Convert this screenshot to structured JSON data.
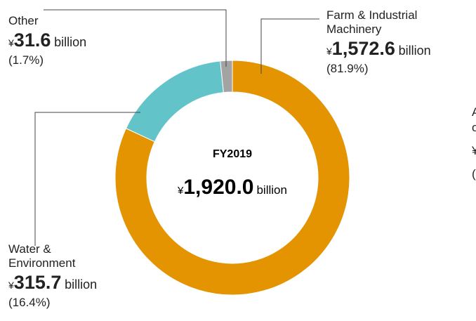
{
  "chart_data": {
    "type": "pie",
    "categories": [
      "Farm & Industrial Machinery",
      "Water & Environment",
      "Other"
    ],
    "values": [
      1572.6,
      315.7,
      31.6
    ],
    "value_labels": [
      "1,572.6",
      "315.7",
      "31.6"
    ],
    "percent_labels": [
      "(81.9%)",
      "(16.4%)",
      "(1.7%)"
    ],
    "colors": [
      "#e39400",
      "#62c3c9",
      "#a3a3a3"
    ],
    "currency": "¥",
    "unit": "billion",
    "center_label": "FY2019",
    "total_label": "1,920.0",
    "clipped_texts": [
      "A",
      "o",
      "¥",
      "("
    ]
  }
}
